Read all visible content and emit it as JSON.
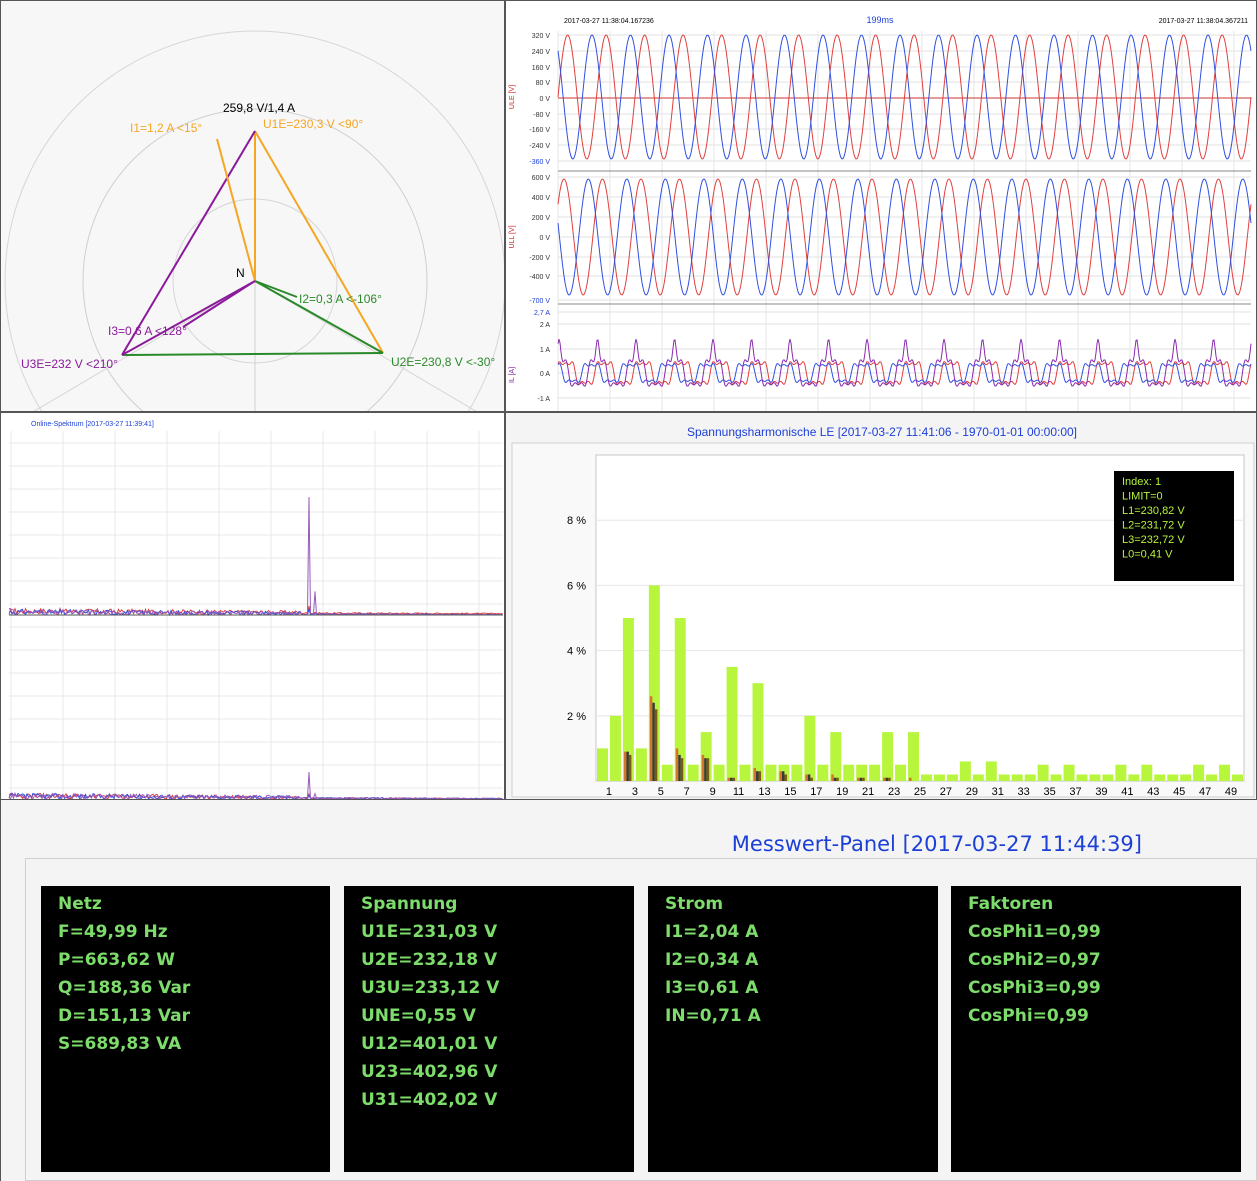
{
  "phasor": {
    "scale_label": "259,8 V/1,4 A",
    "neutral_label": "N",
    "u1_label": "U1E=230,3 V <90°",
    "u2_label": "U2E=230,8 V <-30°",
    "u3_label": "U3E=232 V <210°",
    "i1_label": "I1=1,2 A  <15°",
    "i2_label": "I2=0,3 A  <-106°",
    "i3_label": "I3=0,6 A  <128°"
  },
  "waves": {
    "start_time": "2017-03-27 11:38:04.167236",
    "duration": "199ms",
    "end_time": "2017-03-27 11:38:04.367211",
    "ule_axis": "ULE [V]",
    "ull_axis": "ULL [V]",
    "il_axis": "IL [A]",
    "ule_ticks": [
      "320 V",
      "240 V",
      "160 V",
      "80 V",
      "0 V",
      "-80 V",
      "-160 V",
      "-240 V",
      "-360 V"
    ],
    "ull_ticks": [
      "600 V",
      "400 V",
      "200 V",
      "0 V",
      "-200 V",
      "-400 V",
      "-700 V"
    ],
    "il_ticks": [
      "2,7 A",
      "2 A",
      "1 A",
      "0 A",
      "-1 A"
    ]
  },
  "spectrum": {
    "title": "Online-Spektrum [2017-03-27 11:39:41]"
  },
  "harmonics": {
    "title": "Spannungsharmonische LE [2017-03-27 11:41:06 - 1970-01-01 00:00:00]",
    "tooltip": [
      "Index: 1",
      "LIMIT=0",
      "L1=230,82 V",
      "L2=231,72 V",
      "L3=232,72 V",
      "L0=0,41 V"
    ],
    "colors": {
      "limit": "#b8f53d",
      "l1": "#d4752c",
      "l2": "#3a3a3a",
      "l3": "#7a5a14"
    }
  },
  "chart_data": {
    "type": "bar",
    "title": "Spannungsharmonische LE [2017-03-27 11:41:06 - 1970-01-01 00:00:00]",
    "xlabel": "",
    "ylabel": "",
    "ylim": [
      0,
      10
    ],
    "y_ticks": [
      "2 %",
      "4 %",
      "6 %",
      "8 %"
    ],
    "categories": [
      1,
      2,
      3,
      4,
      5,
      6,
      7,
      8,
      9,
      10,
      11,
      12,
      13,
      14,
      15,
      16,
      17,
      18,
      19,
      20,
      21,
      22,
      23,
      24,
      25,
      26,
      27,
      28,
      29,
      30,
      31,
      32,
      33,
      34,
      35,
      36,
      37,
      38,
      39,
      40,
      41,
      42,
      43,
      44,
      45,
      46,
      47,
      48,
      49,
      50
    ],
    "series": [
      {
        "name": "LIMIT",
        "values": [
          1,
          2,
          5,
          1,
          6,
          0.5,
          5,
          0.5,
          1.5,
          0.5,
          3.5,
          0.5,
          3,
          0.5,
          0.5,
          0.5,
          2,
          0.5,
          1.5,
          0.5,
          0.5,
          0.5,
          1.5,
          0.5,
          1.5,
          0.2,
          0.2,
          0.2,
          0.6,
          0.2,
          0.6,
          0.2,
          0.2,
          0.2,
          0.5,
          0.2,
          0.5,
          0.2,
          0.2,
          0.2,
          0.5,
          0.2,
          0.5,
          0.2,
          0.2,
          0.2,
          0.5,
          0.2,
          0.5,
          0.2
        ]
      },
      {
        "name": "L1",
        "values": [
          0,
          0,
          0.9,
          0,
          2.6,
          0,
          1,
          0,
          0.8,
          0,
          0.1,
          0,
          0.4,
          0,
          0.3,
          0,
          0.2,
          0,
          0.2,
          0,
          0.1,
          0,
          0.1,
          0,
          0.1,
          0,
          0,
          0,
          0,
          0,
          0,
          0,
          0,
          0,
          0,
          0,
          0,
          0,
          0,
          0,
          0,
          0,
          0,
          0,
          0,
          0,
          0,
          0,
          0,
          0
        ]
      },
      {
        "name": "L2",
        "values": [
          0,
          0,
          0.9,
          0,
          2.4,
          0,
          0.8,
          0,
          0.7,
          0,
          0.1,
          0,
          0.3,
          0,
          0.3,
          0,
          0.2,
          0,
          0.1,
          0,
          0.1,
          0,
          0.1,
          0,
          0,
          0,
          0,
          0,
          0,
          0,
          0,
          0,
          0,
          0,
          0,
          0,
          0,
          0,
          0,
          0,
          0,
          0,
          0,
          0,
          0,
          0,
          0,
          0,
          0,
          0
        ]
      },
      {
        "name": "L3",
        "values": [
          0,
          0,
          0.8,
          0,
          2.2,
          0,
          0.7,
          0,
          0.7,
          0,
          0.1,
          0,
          0.3,
          0,
          0.2,
          0,
          0.1,
          0,
          0.1,
          0,
          0.1,
          0,
          0.1,
          0,
          0,
          0,
          0,
          0,
          0,
          0,
          0,
          0,
          0,
          0,
          0,
          0,
          0,
          0,
          0,
          0,
          0,
          0,
          0,
          0,
          0,
          0,
          0,
          0,
          0,
          0
        ]
      }
    ],
    "x_tick_labels": [
      "1",
      "3",
      "5",
      "7",
      "9",
      "11",
      "13",
      "15",
      "17",
      "19",
      "21",
      "23",
      "25",
      "27",
      "29",
      "31",
      "33",
      "35",
      "37",
      "39",
      "41",
      "43",
      "45",
      "47",
      "49"
    ]
  },
  "meter": {
    "title": "Messwert-Panel [2017-03-27 11:44:39]",
    "netz": [
      "Netz",
      "F=49,99 Hz",
      "P=663,62 W",
      "Q=188,36 Var",
      "D=151,13 Var",
      "S=689,83 VA"
    ],
    "spannung": [
      "Spannung",
      "U1E=231,03 V",
      "U2E=232,18 V",
      "U3U=233,12 V",
      "UNE=0,55 V",
      "U12=401,01 V",
      "U23=402,96 V",
      "U31=402,02 V"
    ],
    "strom": [
      "Strom",
      "I1=2,04 A",
      "I2=0,34 A",
      "I3=0,61 A",
      "IN=0,71 A"
    ],
    "faktoren": [
      "Faktoren",
      "CosPhi1=0,99",
      "CosPhi2=0,97",
      "CosPhi3=0,99",
      "CosPhi=0,99"
    ]
  }
}
